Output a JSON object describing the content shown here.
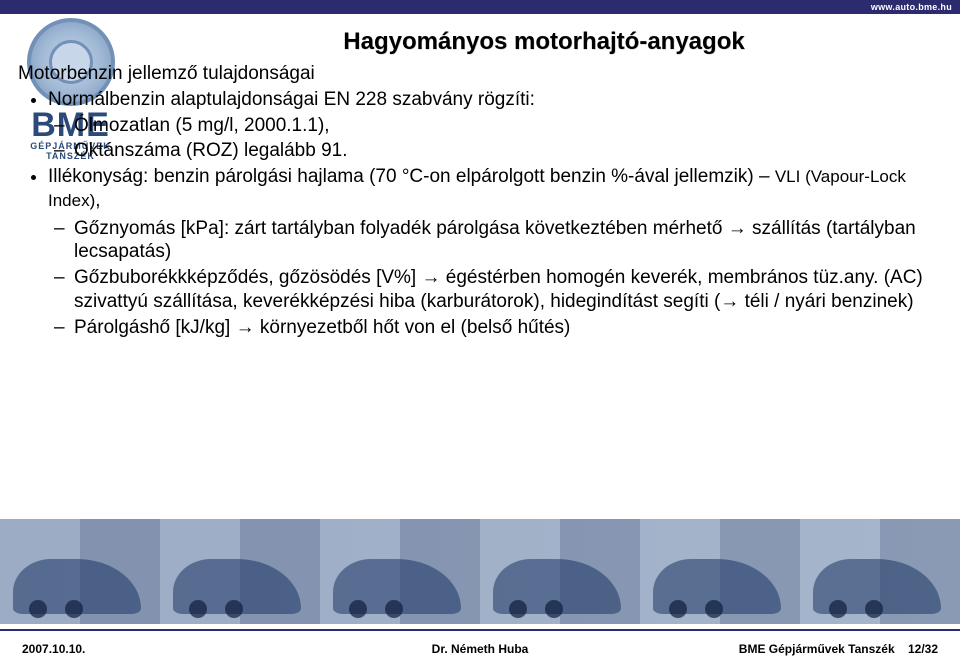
{
  "topbar": {
    "url": "www.auto.bme.hu"
  },
  "logo": {
    "main": "BME",
    "sub1": "GÉPJÁRMŰVEK",
    "sub2": "TANSZÉK"
  },
  "slide": {
    "title": "Hagyományos motorhajtó-anyagok",
    "intro": "Motorbenzin jellemző tulajdonságai",
    "b1": "Normálbenzin alaptulajdonságai EN 228 szabvány rögzíti:",
    "b1a": "Ólmozatlan (5 mg/l, 2000.1.1),",
    "b1b": "Oktánszáma (ROZ) legalább 91.",
    "b2a": "Illékonyság: ",
    "b2b": "benzin párolgási hajlama (70 °C-on elpárolgott benzin %-ával jellemzik) – ",
    "b2c": "VLI (Vapour-Lock Index)",
    "b2_comma": ",",
    "b2d1": "Gőznyomás [kPa]: zárt tartályban folyadék párolgása következtében mérhető ",
    "b2d1_arrow": "→",
    "b2d1_tail": " szállítás (tartályban lecsapatás)",
    "b2d2a": "Gőzbuborékkképződés, gőzösödés [V%] ",
    "b2d2_arrow": "→",
    "b2d2b": " égéstérben homogén keverék, membrános tüz.any. (AC) szivattyú szállítása, keverékképzési hiba (karburátorok), hidegindítást segíti (",
    "b2d2_arrow2": "→",
    "b2d2c": " téli / nyári benzinek)",
    "b2d3a": "Párolgáshő [kJ/kg] ",
    "b2d3_arrow": "→",
    "b2d3b": " környezetből hőt von el (belső hűtés)"
  },
  "footer": {
    "left": "2007.10.10.",
    "center": "Dr. Németh Huba",
    "right_label": "BME Gépjárművek Tanszék",
    "right_page": "12/32"
  },
  "colors": {
    "brand_dark": "#2b2b6e",
    "logo_blue": "#2b4a7a"
  }
}
